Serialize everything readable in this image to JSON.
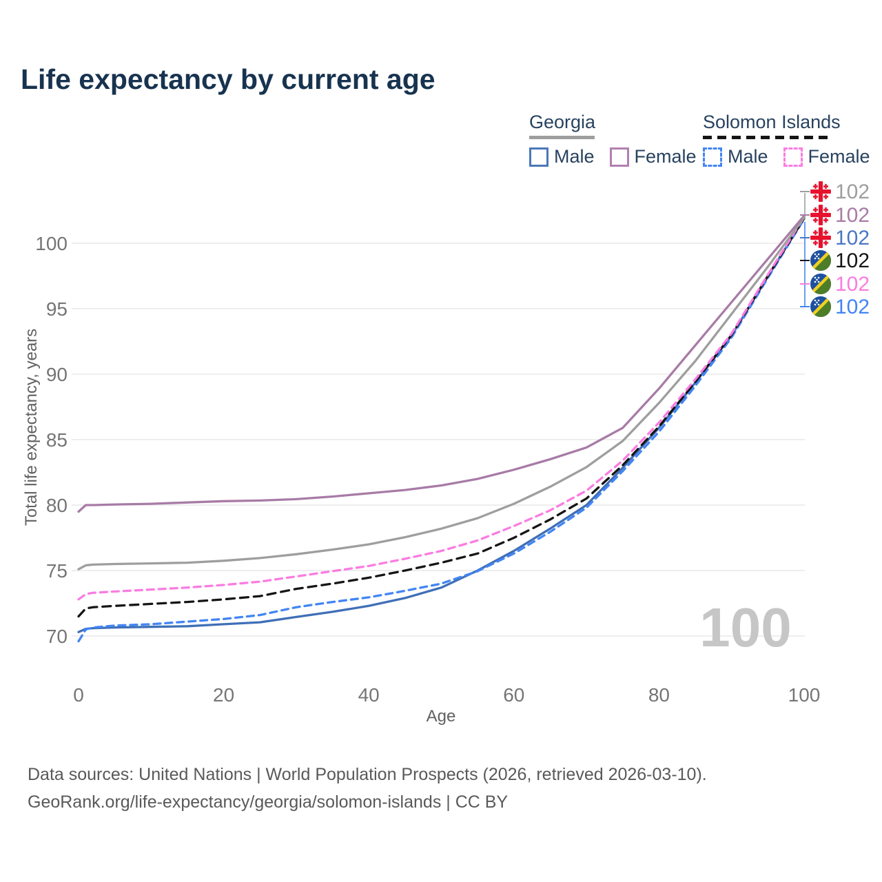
{
  "title": "Life expectancy by current age",
  "legend": {
    "groups": [
      {
        "label": "Georgia",
        "underline_style": "solid",
        "underline_color": "#9e9e9e",
        "items": [
          {
            "label": "Male",
            "color": "#4a78b8",
            "dashed": false
          },
          {
            "label": "Female",
            "color": "#b27fb0",
            "dashed": false
          }
        ]
      },
      {
        "label": "Solomon Islands",
        "underline_style": "dashed",
        "underline_color": "#151515",
        "items": [
          {
            "label": "Male",
            "color": "#4285f4",
            "dashed": true
          },
          {
            "label": "Female",
            "color": "#fa7ce1",
            "dashed": true
          }
        ]
      }
    ]
  },
  "chart_data": {
    "type": "line",
    "title": "Life expectancy by current age",
    "xlabel": "Age",
    "ylabel": "Total life expectancy, years",
    "xlim": [
      0,
      100
    ],
    "ylim": [
      68.5,
      103.5
    ],
    "xticks": [
      0,
      20,
      40,
      60,
      80,
      100
    ],
    "yticks": [
      70,
      75,
      80,
      85,
      90,
      95,
      100
    ],
    "grid": "horizontal-only",
    "legend_position": "top-right",
    "watermark": "100",
    "ages": [
      0,
      1,
      2,
      5,
      10,
      15,
      20,
      25,
      30,
      35,
      40,
      45,
      50,
      55,
      60,
      65,
      70,
      75,
      80,
      85,
      90,
      95,
      100
    ],
    "series": [
      {
        "name": "Georgia male",
        "country": "Georgia",
        "sex": "Male",
        "color": "#3f6fb7",
        "dash": "",
        "end_label": "102",
        "end_label_color": "#4a77c4",
        "flag": "georgia",
        "values": [
          70.3,
          70.55,
          70.6,
          70.65,
          70.7,
          70.75,
          70.9,
          71.05,
          71.45,
          71.85,
          72.3,
          72.9,
          73.7,
          75.0,
          76.5,
          78.2,
          80.0,
          82.85,
          85.9,
          89.35,
          92.95,
          97.45,
          101.9
        ]
      },
      {
        "name": "Solomon Islands male",
        "country": "Solomon Islands",
        "sex": "Male",
        "color": "#4285f4",
        "dash": "10 7",
        "end_label": "102",
        "end_label_color": "#4285f4",
        "flag": "solomon",
        "values": [
          69.6,
          70.5,
          70.65,
          70.8,
          70.9,
          71.1,
          71.3,
          71.6,
          72.2,
          72.6,
          72.95,
          73.45,
          74.0,
          74.95,
          76.3,
          77.95,
          79.8,
          82.6,
          85.6,
          89.1,
          92.8,
          97.35,
          101.85
        ]
      },
      {
        "name": "Solomon Islands both sexes",
        "country": "Solomon Islands",
        "sex": "Both",
        "color": "#151515",
        "dash": "12 8",
        "end_label": "102",
        "end_label_color": "#151515",
        "flag": "solomon",
        "values": [
          71.5,
          72.1,
          72.2,
          72.3,
          72.45,
          72.6,
          72.8,
          73.05,
          73.6,
          74.0,
          74.45,
          75.0,
          75.6,
          76.3,
          77.5,
          78.9,
          80.5,
          83.05,
          86.0,
          89.4,
          93.0,
          97.5,
          101.9
        ]
      },
      {
        "name": "Solomon Islands female",
        "country": "Solomon Islands",
        "sex": "Female",
        "color": "#fa7ce1",
        "dash": "10 7",
        "end_label": "102",
        "end_label_color": "#fa7ce1",
        "flag": "solomon",
        "values": [
          72.8,
          73.2,
          73.3,
          73.4,
          73.55,
          73.7,
          73.9,
          74.15,
          74.55,
          74.95,
          75.35,
          75.9,
          76.5,
          77.3,
          78.4,
          79.6,
          81.1,
          83.4,
          86.3,
          89.6,
          93.1,
          97.6,
          102.0
        ]
      },
      {
        "name": "Georgia both sexes",
        "country": "Georgia",
        "sex": "Both",
        "color": "#9e9e9e",
        "dash": "",
        "end_label": "102",
        "end_label_color": "#9e9e9e",
        "flag": "georgia",
        "values": [
          75.1,
          75.4,
          75.45,
          75.5,
          75.55,
          75.6,
          75.75,
          75.95,
          76.25,
          76.6,
          77.0,
          77.55,
          78.2,
          79.0,
          80.1,
          81.4,
          82.9,
          84.9,
          87.8,
          91.0,
          94.6,
          98.2,
          101.95
        ]
      },
      {
        "name": "Georgia female",
        "country": "Georgia",
        "sex": "Female",
        "color": "#a87ba6",
        "dash": "",
        "end_label": "102",
        "end_label_color": "#a87ba6",
        "flag": "georgia",
        "values": [
          79.5,
          80.0,
          80.0,
          80.05,
          80.1,
          80.2,
          80.3,
          80.35,
          80.45,
          80.65,
          80.9,
          81.15,
          81.5,
          82.0,
          82.7,
          83.5,
          84.4,
          85.9,
          88.9,
          92.2,
          95.5,
          98.8,
          102.1
        ]
      }
    ],
    "end_label_rows": [
      {
        "flag": "georgia",
        "value": "102",
        "color": "#9e9e9e"
      },
      {
        "flag": "georgia",
        "value": "102",
        "color": "#a87ba6"
      },
      {
        "flag": "georgia",
        "value": "102",
        "color": "#4a77c4"
      },
      {
        "flag": "solomon",
        "value": "102",
        "color": "#151515"
      },
      {
        "flag": "solomon",
        "value": "102",
        "color": "#fa7ce1"
      },
      {
        "flag": "solomon",
        "value": "102",
        "color": "#4285f4"
      }
    ]
  },
  "colors": {
    "title": "#17334f",
    "tick": "#757575",
    "axis_title": "#616161",
    "grid": "#e9e9e9",
    "watermark": "#c6c6c6",
    "footer": "#595959",
    "georgia_flag_red": "#e8112d",
    "solomon_blue": "#1e50a0",
    "solomon_green": "#4e7d27",
    "solomon_yellow": "#f0d020"
  },
  "footer": {
    "line1": "Data sources: United Nations | World Population Prospects (2026, retrieved 2026-03-10).",
    "line2": "GeoRank.org/life-expectancy/georgia/solomon-islands | CC BY"
  }
}
